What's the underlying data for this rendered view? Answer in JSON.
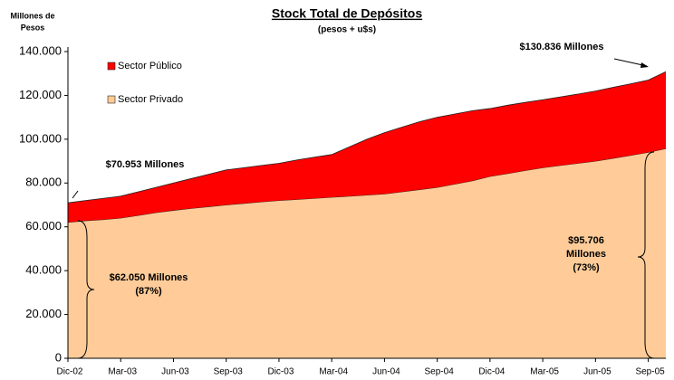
{
  "chart_data": {
    "type": "stacked_area",
    "title": "Stock Total de Depósitos",
    "subtitle": "(pesos + u$s)",
    "y_label": [
      "Millones de",
      "Pesos"
    ],
    "categories": [
      "Dic-02",
      null,
      null,
      "Mar-03",
      null,
      null,
      "Jun-03",
      null,
      null,
      "Sep-03",
      null,
      null,
      "Dic-03",
      null,
      null,
      "Mar-04",
      null,
      null,
      "Jun-04",
      null,
      null,
      "Sep-04",
      null,
      null,
      "Dic-04",
      null,
      null,
      "Mar-05",
      null,
      null,
      "Jun-05",
      null,
      null,
      "Sep-05",
      null
    ],
    "series": [
      {
        "name": "Sector Público",
        "color": "#ff0000",
        "values": [
          8903,
          9200,
          9700,
          10000,
          10800,
          11500,
          12500,
          13600,
          14800,
          16000,
          16300,
          16600,
          17000,
          18000,
          18800,
          19500,
          22500,
          25500,
          28000,
          29500,
          31000,
          32000,
          32000,
          32000,
          31000,
          31200,
          31100,
          31000,
          31300,
          31600,
          32000,
          32400,
          32700,
          33000,
          35130
        ]
      },
      {
        "name": "Sector Privado",
        "color": "#ffcc99",
        "values": [
          62050,
          62800,
          63300,
          64000,
          65200,
          66500,
          67500,
          68400,
          69200,
          70000,
          70700,
          71400,
          72000,
          72500,
          73000,
          73500,
          74000,
          74500,
          75000,
          76000,
          77000,
          78000,
          79500,
          81000,
          83000,
          84300,
          85700,
          87000,
          88000,
          89000,
          90000,
          91300,
          92600,
          94000,
          95706
        ]
      }
    ],
    "ylim": [
      0,
      140000
    ],
    "yticks": [
      0,
      {
        "value": 20000,
        "label": "20.000"
      },
      {
        "value": 40000,
        "label": "40.000"
      },
      {
        "value": 60000,
        "label": "60.000"
      },
      {
        "value": 80000,
        "label": "80.000"
      },
      {
        "value": 100000,
        "label": "100.000"
      },
      {
        "value": 120000,
        "label": "120.000"
      },
      {
        "value": 140000,
        "label": "140.000"
      }
    ],
    "legend": "top-left",
    "annotations": [
      {
        "text": [
          "$70.953 Millones"
        ]
      },
      {
        "text": [
          "$130.836 Millones"
        ]
      },
      {
        "text": [
          "$62.050 Millones",
          "(87%)"
        ]
      },
      {
        "text": [
          "$95.706",
          "Millones",
          "(73%)"
        ]
      }
    ]
  }
}
